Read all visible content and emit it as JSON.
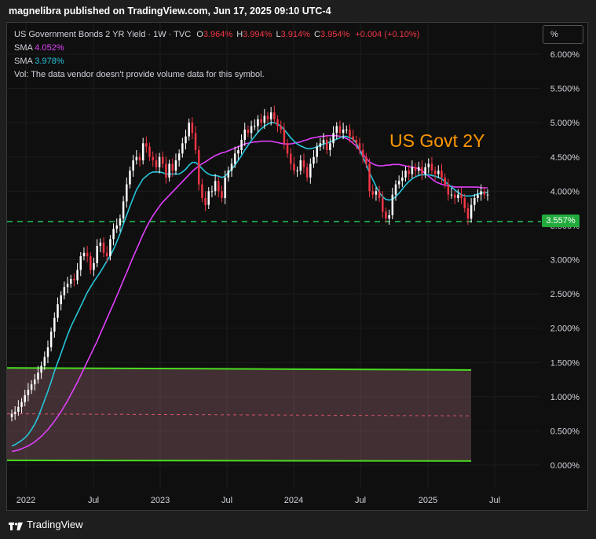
{
  "header": {
    "published": "magnelibra published on TradingView.com, Jun 17, 2025 09:10 UTC-4"
  },
  "legend": {
    "symbol": "US Government Bonds 2 YR Yield · 1W · TVC",
    "o_label": "O",
    "o_value": "3.964%",
    "h_label": "H",
    "h_value": "3.994%",
    "l_label": "L",
    "l_value": "3.914%",
    "c_label": "C",
    "c_value": "3.954%",
    "change": "+0.004 (+0.10%)",
    "sma1_label": "SMA",
    "sma1_value": "4.052%",
    "sma2_label": "SMA",
    "sma2_value": "3.978%",
    "vol": "Vol: The data vendor doesn't provide volume data for this symbol."
  },
  "toolbar": {
    "scale_button": "%"
  },
  "annotation": "US Govt 2Y",
  "price_tag": "3.557%",
  "footer": {
    "brand": "TradingView"
  },
  "colors": {
    "up": "#ffffff",
    "down": "#f23645",
    "sma_slow": "#e040fb",
    "sma_fast": "#26c6da",
    "support": "#22c55e",
    "channel": "#4ade20",
    "annotation": "#ff9800"
  },
  "chart_data": {
    "type": "candlestick",
    "x_ticks": [
      "2022",
      "Jul",
      "2023",
      "Jul",
      "2024",
      "Jul",
      "2025",
      "Jul"
    ],
    "y_ticks": [
      "6.000%",
      "5.500%",
      "5.000%",
      "4.500%",
      "4.000%",
      "3.500%",
      "3.000%",
      "2.500%",
      "2.000%",
      "1.500%",
      "1.000%",
      "0.500%",
      "0.000%"
    ],
    "y_tick_values": [
      6.0,
      5.5,
      5.0,
      4.5,
      4.0,
      3.5,
      3.0,
      2.5,
      2.0,
      1.5,
      1.0,
      0.5,
      0.0
    ],
    "ylim": [
      -0.25,
      6.3
    ],
    "support_level": 3.557,
    "channel": {
      "upper": [
        1.42,
        1.39
      ],
      "lower": [
        0.07,
        0.06
      ],
      "mid": [
        0.75,
        0.72
      ],
      "x_range": [
        "2021-12",
        "2025-05"
      ]
    },
    "close": [
      0.75,
      0.78,
      0.85,
      0.92,
      1.02,
      1.1,
      1.18,
      1.25,
      1.35,
      1.45,
      1.58,
      1.72,
      1.95,
      2.15,
      2.35,
      2.48,
      2.6,
      2.65,
      2.72,
      2.7,
      2.85,
      3.05,
      3.1,
      3.05,
      2.85,
      2.95,
      3.2,
      3.25,
      3.1,
      3.05,
      3.3,
      3.45,
      3.5,
      3.6,
      3.85,
      4.1,
      4.3,
      4.45,
      4.5,
      4.45,
      4.7,
      4.65,
      4.5,
      4.45,
      4.35,
      4.5,
      4.4,
      4.2,
      4.4,
      4.3,
      4.45,
      4.55,
      4.7,
      4.8,
      5.0,
      4.85,
      4.6,
      4.1,
      3.9,
      3.8,
      4.0,
      4.0,
      4.15,
      4.0,
      3.9,
      4.2,
      4.3,
      4.4,
      4.55,
      4.6,
      4.75,
      4.9,
      4.85,
      4.95,
      4.95,
      5.05,
      5.0,
      5.1,
      5.05,
      5.15,
      5.05,
      4.95,
      4.9,
      4.7,
      4.55,
      4.4,
      4.3,
      4.3,
      4.45,
      4.35,
      4.2,
      4.4,
      4.5,
      4.65,
      4.7,
      4.75,
      4.6,
      4.7,
      4.85,
      4.95,
      4.85,
      4.9,
      4.9,
      4.8,
      4.75,
      4.7,
      4.6,
      4.5,
      4.4,
      4.0,
      3.95,
      4.0,
      3.9,
      3.7,
      3.6,
      3.65,
      3.95,
      4.1,
      4.15,
      4.2,
      4.3,
      4.25,
      4.35,
      4.3,
      4.35,
      4.25,
      4.35,
      4.4,
      4.3,
      4.25,
      4.3,
      4.2,
      4.1,
      3.95,
      3.95,
      3.9,
      3.95,
      3.9,
      3.75,
      3.6,
      3.8,
      3.9,
      3.95,
      4.0,
      3.95,
      3.95
    ],
    "sma_fast": [
      0.28,
      0.3,
      0.33,
      0.36,
      0.4,
      0.45,
      0.52,
      0.6,
      0.7,
      0.82,
      0.95,
      1.08,
      1.22,
      1.37,
      1.5,
      1.63,
      1.77,
      1.9,
      2.02,
      2.12,
      2.22,
      2.32,
      2.42,
      2.52,
      2.6,
      2.68,
      2.75,
      2.82,
      2.9,
      2.98,
      3.06,
      3.15,
      3.26,
      3.38,
      3.52,
      3.65,
      3.78,
      3.9,
      4.02,
      4.1,
      4.18,
      4.22,
      4.26,
      4.28,
      4.28,
      4.28,
      4.27,
      4.25,
      4.25,
      4.25,
      4.25,
      4.25,
      4.28,
      4.32,
      4.38,
      4.42,
      4.42,
      4.38,
      4.33,
      4.28,
      4.25,
      4.23,
      4.23,
      4.22,
      4.2,
      4.22,
      4.27,
      4.32,
      4.38,
      4.45,
      4.52,
      4.6,
      4.67,
      4.74,
      4.8,
      4.86,
      4.91,
      4.95,
      4.98,
      5.0,
      5.0,
      4.98,
      4.95,
      4.9,
      4.84,
      4.78,
      4.73,
      4.69,
      4.66,
      4.64,
      4.62,
      4.62,
      4.63,
      4.65,
      4.67,
      4.69,
      4.7,
      4.72,
      4.74,
      4.76,
      4.78,
      4.8,
      4.8,
      4.78,
      4.76,
      4.7,
      4.6,
      4.5,
      4.39,
      4.27,
      4.17,
      4.07,
      3.98,
      3.92,
      3.88,
      3.87,
      3.88,
      3.92,
      3.97,
      4.03,
      4.09,
      4.14,
      4.18,
      4.21,
      4.23,
      4.24,
      4.24,
      4.24,
      4.23,
      4.22,
      4.2,
      4.18,
      4.14,
      4.1,
      4.06,
      4.02,
      3.98,
      3.95,
      3.93,
      3.93,
      3.93,
      3.94,
      3.96,
      3.97,
      3.98,
      3.98
    ],
    "sma_slow": [
      0.2,
      0.21,
      0.22,
      0.24,
      0.26,
      0.28,
      0.31,
      0.34,
      0.38,
      0.42,
      0.47,
      0.52,
      0.58,
      0.64,
      0.71,
      0.78,
      0.86,
      0.94,
      1.03,
      1.12,
      1.21,
      1.31,
      1.41,
      1.51,
      1.61,
      1.71,
      1.81,
      1.92,
      2.03,
      2.14,
      2.25,
      2.36,
      2.47,
      2.58,
      2.7,
      2.81,
      2.93,
      3.04,
      3.15,
      3.26,
      3.37,
      3.47,
      3.56,
      3.64,
      3.71,
      3.78,
      3.84,
      3.89,
      3.94,
      3.99,
      4.04,
      4.09,
      4.14,
      4.19,
      4.24,
      4.29,
      4.33,
      4.37,
      4.4,
      4.43,
      4.46,
      4.49,
      4.52,
      4.54,
      4.56,
      4.57,
      4.59,
      4.61,
      4.63,
      4.65,
      4.67,
      4.69,
      4.7,
      4.71,
      4.72,
      4.72,
      4.73,
      4.73,
      4.73,
      4.73,
      4.72,
      4.71,
      4.7,
      4.69,
      4.69,
      4.69,
      4.7,
      4.71,
      4.72,
      4.74,
      4.75,
      4.77,
      4.78,
      4.79,
      4.8,
      4.8,
      4.81,
      4.81,
      4.81,
      4.81,
      4.8,
      4.79,
      4.77,
      4.74,
      4.7,
      4.66,
      4.6,
      4.54,
      4.48,
      4.43,
      4.4,
      4.38,
      4.37,
      4.37,
      4.38,
      4.38,
      4.39,
      4.39,
      4.39,
      4.38,
      4.37,
      4.36,
      4.35,
      4.34,
      4.33,
      4.3,
      4.26,
      4.22,
      4.18,
      4.14,
      4.12,
      4.1,
      4.09,
      4.08,
      4.07,
      4.06,
      4.06,
      4.06,
      4.06,
      4.06,
      4.06,
      4.06,
      4.06,
      4.05,
      4.05,
      4.05
    ]
  }
}
